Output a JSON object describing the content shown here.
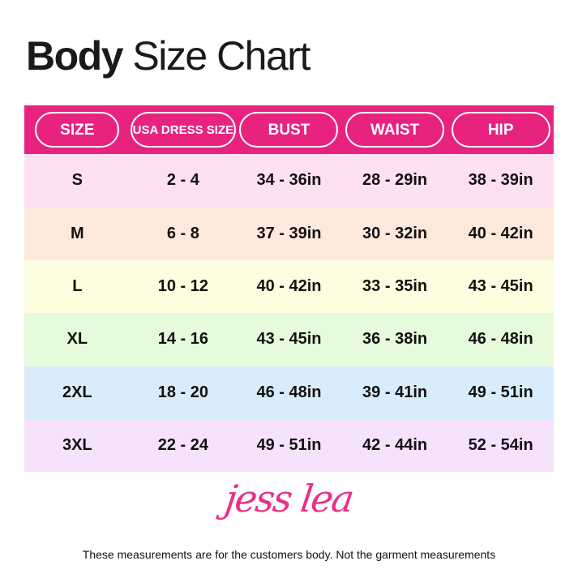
{
  "title": {
    "bold": "Body",
    "rest": "Size Chart"
  },
  "colors": {
    "header": "#e8237f",
    "rows": [
      "#fde0f2",
      "#fde8dc",
      "#fdfde0",
      "#e6fbdc",
      "#d8ecfc",
      "#f6e2fb"
    ]
  },
  "headers": [
    "SIZE",
    "USA DRESS SIZE",
    "BUST",
    "WAIST",
    "HIP"
  ],
  "rows": [
    [
      "S",
      "2 - 4",
      "34 - 36in",
      "28 - 29in",
      "38 - 39in"
    ],
    [
      "M",
      "6 - 8",
      "37 - 39in",
      "30 - 32in",
      "40 - 42in"
    ],
    [
      "L",
      "10 - 12",
      "40 - 42in",
      "33 - 35in",
      "43 - 45in"
    ],
    [
      "XL",
      "14 - 16",
      "43 - 45in",
      "36 - 38in",
      "46 - 48in"
    ],
    [
      "2XL",
      "18 - 20",
      "46 - 48in",
      "39 - 41in",
      "49 - 51in"
    ],
    [
      "3XL",
      "22 - 24",
      "49 - 51in",
      "42 - 44in",
      "52 - 54in"
    ]
  ],
  "logo": "jess lea",
  "footnote": "These measurements are for the customers body. Not the garment measurements"
}
